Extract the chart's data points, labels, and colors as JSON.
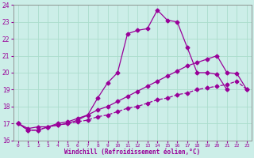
{
  "xlabel": "Windchill (Refroidissement éolien,°C)",
  "line_color": "#990099",
  "bg_color": "#cceee8",
  "grid_color": "#aaddcc",
  "xlim": [
    -0.5,
    23.5
  ],
  "ylim": [
    16,
    24
  ],
  "xticks": [
    0,
    1,
    2,
    3,
    4,
    5,
    6,
    7,
    8,
    9,
    10,
    11,
    12,
    13,
    14,
    15,
    16,
    17,
    18,
    19,
    20,
    21,
    22,
    23
  ],
  "yticks": [
    16,
    17,
    18,
    19,
    20,
    21,
    22,
    23,
    24
  ],
  "line1_x": [
    0,
    1,
    2,
    3,
    4,
    5,
    6,
    7,
    8,
    9,
    10,
    11,
    12,
    13,
    14,
    15,
    16,
    17,
    18,
    19,
    20,
    21
  ],
  "line1_y": [
    17.0,
    16.6,
    16.6,
    16.8,
    16.9,
    17.0,
    17.2,
    17.5,
    18.5,
    19.4,
    20.0,
    22.3,
    22.5,
    22.6,
    23.7,
    23.1,
    23.0,
    21.5,
    20.0,
    20.0,
    19.9,
    19.0
  ],
  "line2_x": [
    0,
    1,
    2,
    3,
    4,
    5,
    6,
    7,
    8,
    9,
    10,
    11,
    12,
    13,
    14,
    15,
    16,
    17,
    18,
    19,
    20,
    21,
    22,
    23
  ],
  "line2_y": [
    17.0,
    16.7,
    16.8,
    16.8,
    17.0,
    17.1,
    17.3,
    17.5,
    17.8,
    18.0,
    18.3,
    18.6,
    18.9,
    19.2,
    19.5,
    19.8,
    20.1,
    20.4,
    20.6,
    20.8,
    21.0,
    20.0,
    19.95,
    19.0
  ],
  "line3_x": [
    0,
    1,
    2,
    3,
    4,
    5,
    6,
    7,
    8,
    9,
    10,
    11,
    12,
    13,
    14,
    15,
    16,
    17,
    18,
    19,
    20,
    21,
    22,
    23
  ],
  "line3_y": [
    17.0,
    16.6,
    16.6,
    16.8,
    16.9,
    17.0,
    17.1,
    17.2,
    17.4,
    17.5,
    17.7,
    17.9,
    18.0,
    18.2,
    18.4,
    18.5,
    18.7,
    18.8,
    19.0,
    19.1,
    19.2,
    19.3,
    19.5,
    19.0
  ]
}
